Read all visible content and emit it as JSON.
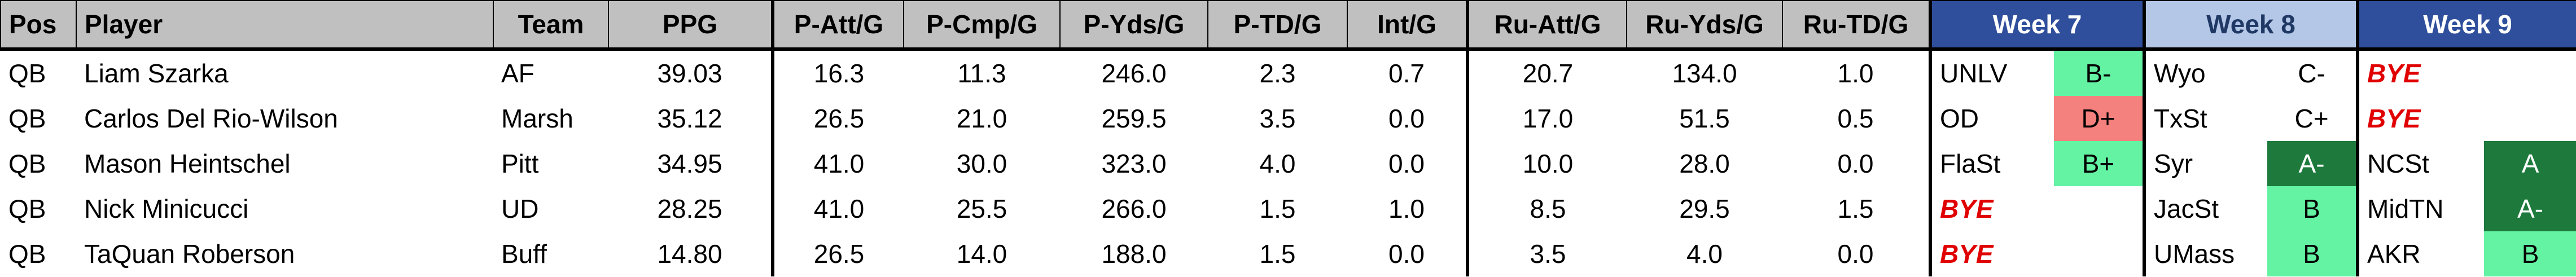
{
  "header": {
    "columns": [
      "Pos",
      "Player",
      "Team",
      "PPG",
      "P-Att/G",
      "P-Cmp/G",
      "P-Yds/G",
      "P-TD/G",
      "Int/G",
      "Ru-Att/G",
      "Ru-Yds/G",
      "Ru-TD/G"
    ],
    "weeks": [
      {
        "label": "Week 7",
        "fill": "#2f4f9c",
        "color": "#ffffff"
      },
      {
        "label": "Week 8",
        "fill": "#b4c7e7",
        "color": "#1f3864"
      },
      {
        "label": "Week 9",
        "fill": "#2f4f9c",
        "color": "#ffffff"
      }
    ]
  },
  "rows": [
    {
      "cells": [
        "QB",
        "Liam Szarka",
        "AF",
        "39.03",
        "16.3",
        "11.3",
        "246.0",
        "2.3",
        "0.7",
        "20.7",
        "134.0",
        "1.0"
      ],
      "weeks": [
        {
          "opponent": "UNLV",
          "grade": "B-",
          "fill": "#63f3a3"
        },
        {
          "opponent": "Wyo",
          "grade": "C-"
        },
        {
          "opponent": "BYE",
          "color": "#e00000"
        }
      ]
    },
    {
      "cells": [
        "QB",
        "Carlos Del Rio-Wilson",
        "Marsh",
        "35.12",
        "26.5",
        "21.0",
        "259.5",
        "3.5",
        "0.0",
        "17.0",
        "51.5",
        "0.5"
      ],
      "weeks": [
        {
          "opponent": "OD",
          "grade": "D+",
          "fill": "#f4817d"
        },
        {
          "opponent": "TxSt",
          "grade": "C+"
        },
        {
          "opponent": "BYE",
          "color": "#e00000"
        }
      ]
    },
    {
      "cells": [
        "QB",
        "Mason Heintschel",
        "Pitt",
        "34.95",
        "41.0",
        "30.0",
        "323.0",
        "4.0",
        "0.0",
        "10.0",
        "28.0",
        "0.0"
      ],
      "weeks": [
        {
          "opponent": "FlaSt",
          "grade": "B+",
          "fill": "#63f3a3"
        },
        {
          "opponent": "Syr",
          "grade": "A-",
          "fill": "#1e7a3c",
          "grade_color": "#ffffff"
        },
        {
          "opponent": "NCSt",
          "grade": "A",
          "fill": "#1e7a3c",
          "grade_color": "#ffffff"
        }
      ]
    },
    {
      "cells": [
        "QB",
        "Nick Minicucci",
        "UD",
        "28.25",
        "41.0",
        "25.5",
        "266.0",
        "1.5",
        "1.0",
        "8.5",
        "29.5",
        "1.5"
      ],
      "weeks": [
        {
          "opponent": "BYE",
          "color": "#e00000"
        },
        {
          "opponent": "JacSt",
          "grade": "B",
          "fill": "#63f3a3"
        },
        {
          "opponent": "MidTN",
          "grade": "A-",
          "fill": "#1e7a3c",
          "grade_color": "#ffffff"
        }
      ]
    },
    {
      "cells": [
        "QB",
        "TaQuan Roberson",
        "Buff",
        "14.80",
        "26.5",
        "14.0",
        "188.0",
        "1.5",
        "0.0",
        "3.5",
        "4.0",
        "0.0"
      ],
      "weeks": [
        {
          "opponent": "BYE",
          "color": "#e00000"
        },
        {
          "opponent": "UMass",
          "grade": "B",
          "fill": "#63f3a3"
        },
        {
          "opponent": "AKR",
          "grade": "B",
          "fill": "#63f3a3"
        }
      ]
    }
  ]
}
